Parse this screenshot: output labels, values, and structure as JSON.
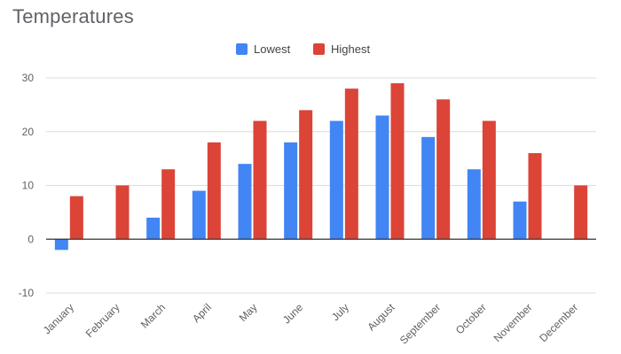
{
  "chart_data": {
    "type": "bar",
    "title": "Temperatures",
    "categories": [
      "January",
      "February",
      "March",
      "April",
      "May",
      "June",
      "July",
      "August",
      "September",
      "October",
      "November",
      "December"
    ],
    "series": [
      {
        "name": "Lowest",
        "color": "#4285f4",
        "values": [
          -2,
          0,
          4,
          9,
          14,
          18,
          22,
          23,
          19,
          13,
          7,
          0
        ]
      },
      {
        "name": "Highest",
        "color": "#db4437",
        "values": [
          8,
          10,
          13,
          18,
          22,
          24,
          28,
          29,
          26,
          22,
          16,
          10
        ]
      }
    ],
    "ylim": [
      -10,
      30
    ],
    "yticks": [
      -10,
      0,
      10,
      20,
      30
    ],
    "grid": true,
    "legend": "top-center"
  }
}
